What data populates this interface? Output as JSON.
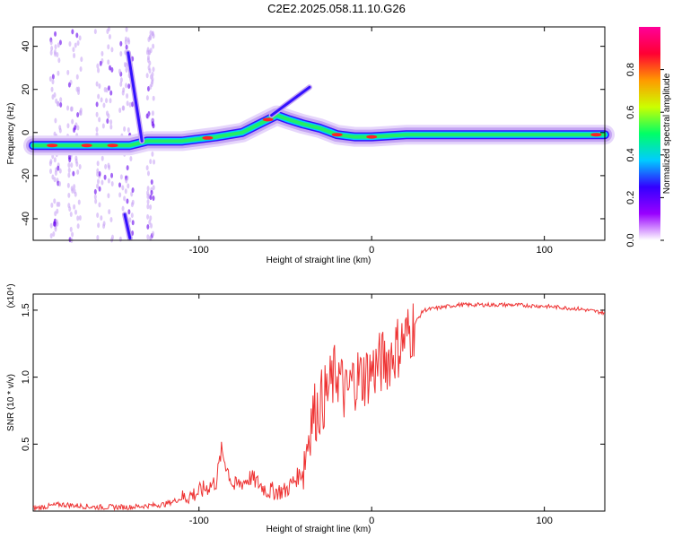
{
  "title": "C2E2.2025.058.11.10.G26",
  "chart_data": [
    {
      "type": "heatmap",
      "xlabel": "Height of straight line (km)",
      "ylabel": "Frequency (Hz)",
      "xlim": [
        -196,
        135
      ],
      "ylim": [
        -50,
        49
      ],
      "x_ticks": [
        -100,
        0,
        100
      ],
      "y_ticks": [
        40,
        20,
        0,
        -20,
        -40
      ],
      "colorbar": {
        "label": "Normalized spectral amplitude",
        "range": [
          0,
          1
        ],
        "ticks": [
          "0.0",
          "0.2",
          "0.4",
          "0.6",
          "0.8"
        ],
        "colors": [
          "#ffffff",
          "#9900ff",
          "#3300ff",
          "#00ccff",
          "#00ff66",
          "#ccff00",
          "#ff9900",
          "#ff0033",
          "#ff0099"
        ]
      },
      "series": [
        {
          "points": [
            [
              -196,
              -6
            ],
            [
              -180,
              -6
            ],
            [
              -160,
              -6
            ],
            [
              -140,
              -6
            ],
            [
              -130,
              -4
            ],
            [
              -110,
              -4
            ],
            [
              -90,
              -2
            ],
            [
              -75,
              0
            ],
            [
              -65,
              4
            ],
            [
              -55,
              8
            ],
            [
              -48,
              6
            ],
            [
              -40,
              4
            ],
            [
              -30,
              2
            ],
            [
              -20,
              -1
            ],
            [
              -10,
              -2
            ],
            [
              0,
              -2
            ],
            [
              20,
              -1
            ],
            [
              60,
              -1
            ],
            [
              100,
              -1
            ],
            [
              120,
              -1
            ],
            [
              135,
              -1
            ]
          ]
        },
        {
          "points": [
            [
              -141,
              37
            ],
            [
              -133,
              -4
            ]
          ]
        },
        {
          "points": [
            [
              -58,
              8
            ],
            [
              -36,
              21
            ]
          ]
        },
        {
          "points": [
            [
              -143,
              -38
            ],
            [
              -140,
              -49
            ]
          ]
        }
      ]
    },
    {
      "type": "line",
      "xlabel": "Height of straight line (km)",
      "ylabel": "SNR (10 * v/v)",
      "y_multiplier": "(x10⁴)",
      "xlim": [
        -196,
        135
      ],
      "ylim": [
        0,
        1.62
      ],
      "x_ticks": [
        -100,
        0,
        100
      ],
      "y_ticks": [
        "0.5",
        "1.0",
        "1.5"
      ],
      "color": "#ee3333",
      "x": [
        -196,
        -180,
        -160,
        -140,
        -120,
        -100,
        -90,
        -87,
        -80,
        -70,
        -60,
        -50,
        -40,
        -35,
        -30,
        -25,
        -20,
        -15,
        -10,
        -5,
        0,
        10,
        20,
        25,
        30,
        40,
        50,
        60,
        80,
        100,
        120,
        135
      ],
      "y": [
        0.02,
        0.05,
        0.03,
        0.03,
        0.05,
        0.14,
        0.22,
        0.45,
        0.18,
        0.25,
        0.15,
        0.15,
        0.3,
        0.7,
        0.8,
        0.9,
        1.05,
        0.85,
        1.0,
        1.0,
        1.05,
        1.15,
        1.3,
        1.4,
        1.5,
        1.52,
        1.54,
        1.54,
        1.54,
        1.53,
        1.51,
        1.48
      ]
    }
  ]
}
